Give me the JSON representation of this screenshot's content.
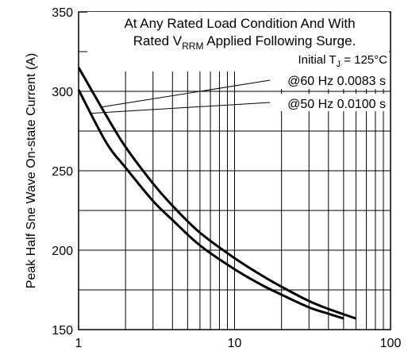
{
  "chart_data": {
    "type": "line",
    "title": "",
    "xlabel": "",
    "ylabel": "Peak Half Sne Wave On-state Current (A)",
    "x_scale": "log",
    "xlim": [
      1,
      100
    ],
    "ylim": [
      150,
      350
    ],
    "x_ticks": [
      "1",
      "10",
      "100"
    ],
    "y_ticks": [
      "150",
      "200",
      "250",
      "300",
      "350"
    ],
    "grid": true,
    "annotations": {
      "line1": "At Any Rated Load Condition And With",
      "line2_prefix": "Rated V",
      "line2_sub": "RRM",
      "line2_suffix": " Applied Following Surge.",
      "line3_prefix": "Initial T",
      "line3_sub": "J",
      "line3_suffix": " = 125°C"
    },
    "series": [
      {
        "name": "@60 Hz 0.0083 s",
        "x": [
          1,
          1.5,
          2,
          3,
          4,
          6,
          10,
          15,
          20,
          30,
          40,
          60
        ],
        "y": [
          315,
          285,
          265,
          242,
          228,
          211,
          195,
          184,
          177,
          168,
          163,
          157
        ]
      },
      {
        "name": "@50 Hz 0.0100 s",
        "x": [
          1,
          1.5,
          2,
          3,
          4,
          6,
          10,
          15,
          20,
          30,
          40,
          50
        ],
        "y": [
          301,
          268,
          252,
          231,
          219,
          203,
          188,
          178,
          172,
          164,
          160,
          157
        ]
      }
    ]
  }
}
